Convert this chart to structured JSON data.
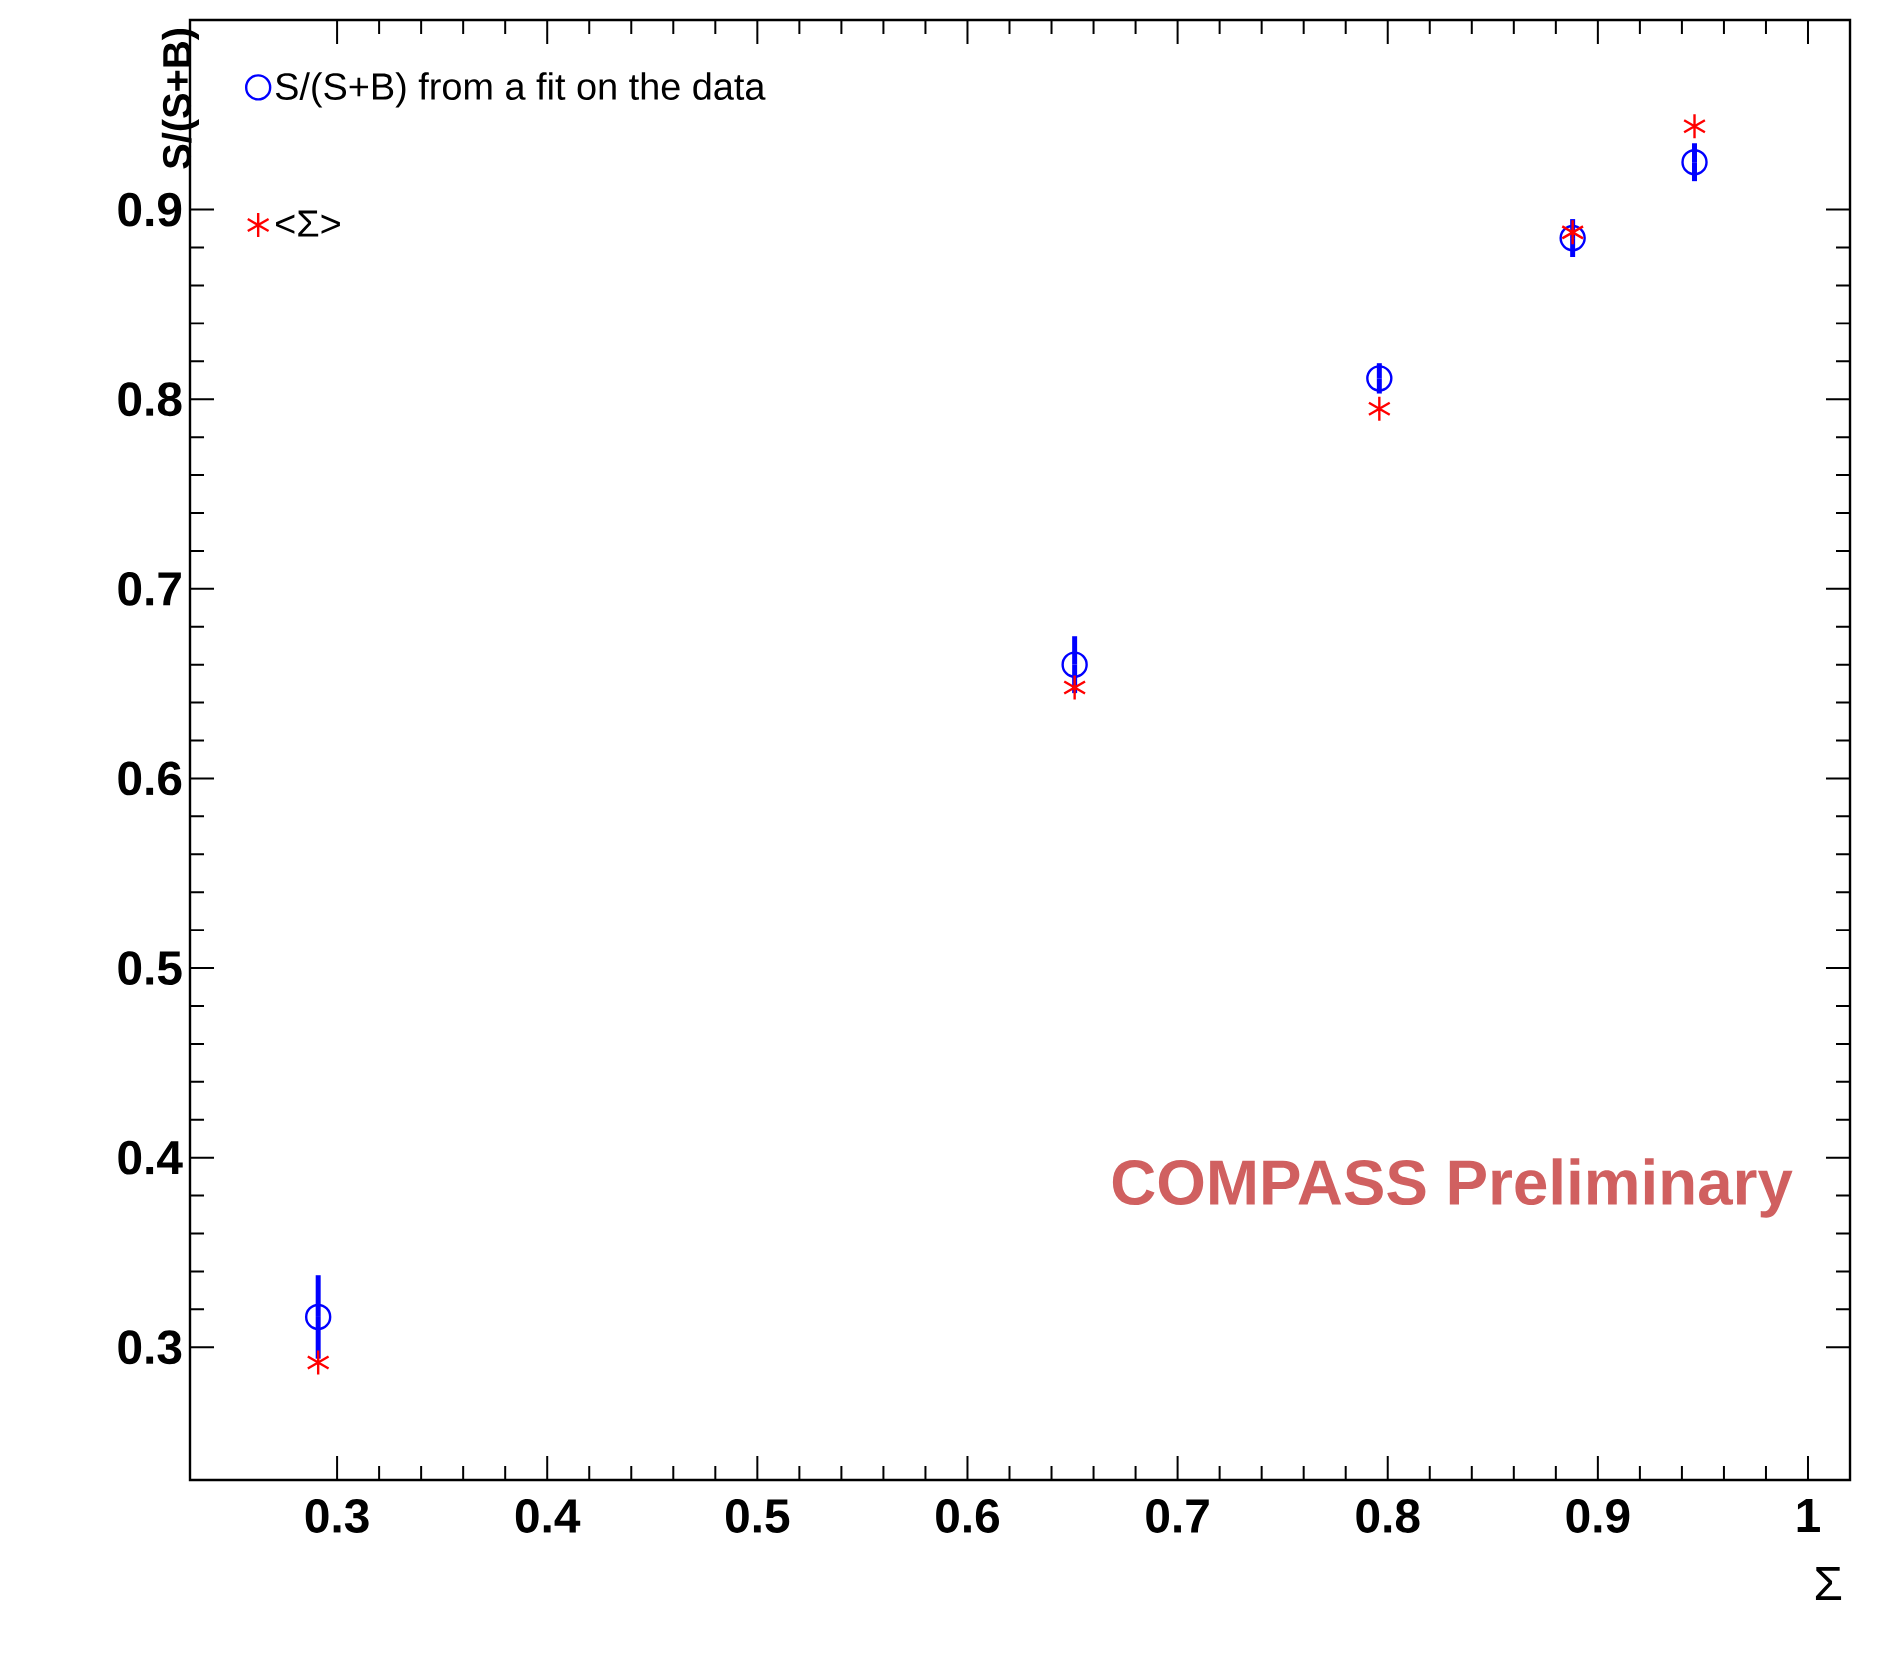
{
  "chart_data": {
    "type": "scatter",
    "xlabel": "Σ",
    "ylabel": "S/(S+B)",
    "xlim": [
      0.23,
      1.02
    ],
    "ylim": [
      0.23,
      1.0
    ],
    "xticks": [
      0.3,
      0.4,
      0.5,
      0.6,
      0.7,
      0.8,
      0.9,
      {
        "value": 1.0,
        "label": "1"
      }
    ],
    "yticks": [
      0.3,
      0.4,
      0.5,
      0.6,
      0.7,
      0.8,
      0.9
    ],
    "legend": "top left",
    "grid": false,
    "series": [
      {
        "name": "S/(S+B) from a fit on the data",
        "color": "#0000ff",
        "marker": "circle",
        "x": [
          0.291,
          0.651,
          0.796,
          0.888,
          0.946
        ],
        "values": [
          0.316,
          0.66,
          0.811,
          0.885,
          0.925
        ],
        "errors": [
          0.022,
          0.015,
          0.008,
          0.01,
          0.01
        ]
      },
      {
        "name": "<Σ>",
        "color": "#ff0000",
        "marker": "cross",
        "x": [
          0.291,
          0.651,
          0.796,
          0.888,
          0.946
        ],
        "values": [
          0.292,
          0.648,
          0.795,
          0.888,
          0.944
        ]
      }
    ],
    "annotations": [
      "COMPASS Preliminary"
    ]
  }
}
